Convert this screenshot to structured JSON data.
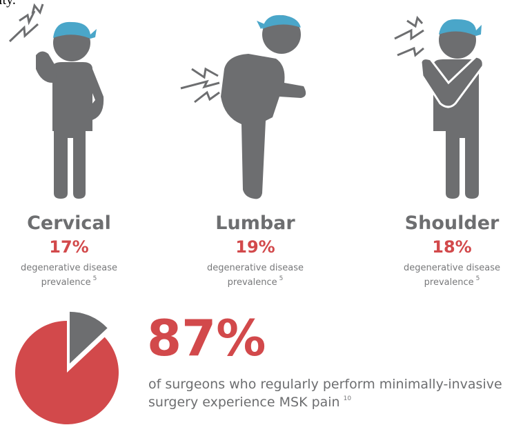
{
  "header": {
    "text": "ity."
  },
  "panels": [
    {
      "label": "Cervical",
      "percent": "17%",
      "line1": "degenerative disease",
      "line2": "prevalence",
      "note": "5"
    },
    {
      "label": "Lumbar",
      "percent": "19%",
      "line1": "degenerative disease",
      "line2": "prevalence",
      "note": "5"
    },
    {
      "label": "Shoulder",
      "percent": "18%",
      "line1": "degenerative disease",
      "line2": "prevalence",
      "note": "5"
    }
  ],
  "summary": {
    "value": 87,
    "value_label": "87%",
    "line1": "of surgeons who regularly perform minimally-invasive",
    "line2": "surgery experience MSK pain",
    "note": "10"
  }
}
